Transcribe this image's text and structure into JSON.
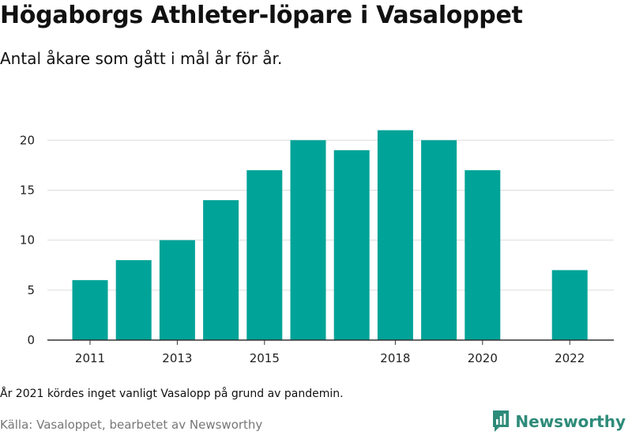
{
  "title": "Högaborgs Athleter-löpare i Vasaloppet",
  "subtitle": "Antal åkare som gått i mål år för år.",
  "note": "År 2021 kördes inget vanligt Vasalopp på grund av pandemin.",
  "source": "Källa: Vasaloppet, bearbetet av Newsworthy",
  "brand": {
    "name": "Newsworthy",
    "icon": "newsworthy-logo-icon",
    "color": "#2e8b7a"
  },
  "colors": {
    "bar": "#00a398",
    "grid": "#dddddd",
    "axis": "#333333"
  },
  "chart_data": {
    "type": "bar",
    "categories": [
      "2011",
      "2012",
      "2013",
      "2014",
      "2015",
      "2016",
      "2017",
      "2018",
      "2019",
      "2020",
      "2021",
      "2022"
    ],
    "values": [
      6,
      8,
      10,
      14,
      17,
      20,
      19,
      21,
      20,
      17,
      null,
      7
    ],
    "x_tick_labels": [
      "2011",
      "",
      "2013",
      "",
      "2015",
      "",
      "",
      "2018",
      "",
      "2020",
      "",
      "2022"
    ],
    "y_ticks": [
      0,
      5,
      10,
      15,
      20
    ],
    "ylim": [
      0,
      22
    ],
    "grid": true,
    "legend": "none"
  }
}
